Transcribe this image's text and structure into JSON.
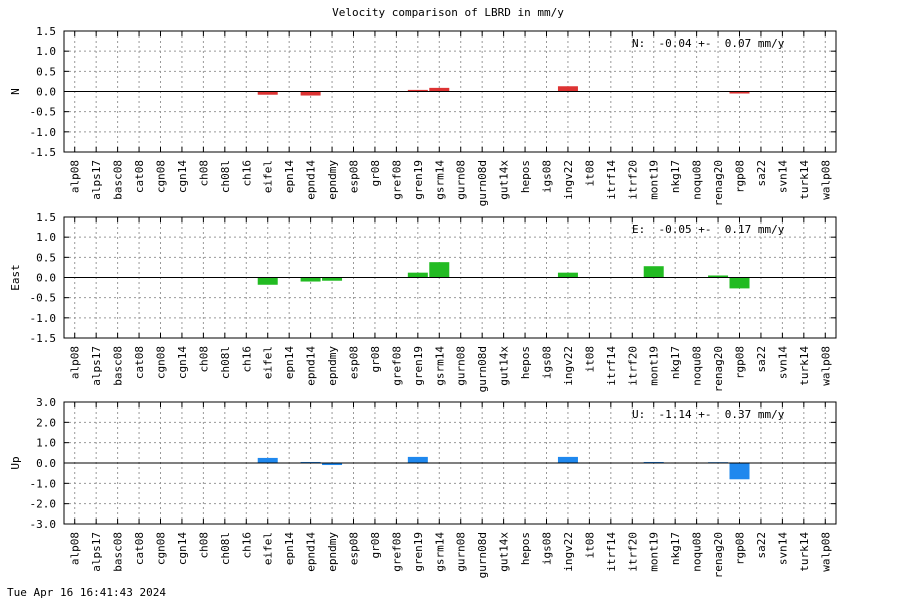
{
  "chart_data": {
    "type": "bar",
    "title": "Velocity comparison of LBRD in mm/y",
    "categories": [
      "alp08",
      "alps17",
      "basc08",
      "cat08",
      "cgn08",
      "cgn14",
      "ch08",
      "ch08l",
      "ch16",
      "eifel",
      "epn14",
      "epnd14",
      "epndmy",
      "esp08",
      "gr08",
      "gref08",
      "gren19",
      "gsrm14",
      "gurn08",
      "gurn08d",
      "gut14x",
      "hepos",
      "igs08",
      "ingv22",
      "it08",
      "itrf14",
      "itrf20",
      "mont19",
      "nkg17",
      "noqu08",
      "renag20",
      "rgp08",
      "sa22",
      "svn14",
      "turk14",
      "walp08"
    ],
    "grid": true,
    "panels": [
      {
        "ylabel": "N",
        "stat": "N:  -0.04 +-  0.07 mm/y",
        "color": "#dd3333",
        "ylim": [
          -1.5,
          1.5
        ],
        "yticks": [
          "1.5",
          "1.0",
          "0.5",
          "0.0",
          "-0.5",
          "-1.0",
          "-1.5"
        ],
        "values": [
          0,
          0,
          0,
          0,
          0,
          0,
          0,
          0,
          0,
          -0.08,
          0,
          -0.1,
          0,
          0,
          0,
          0,
          0.04,
          0.09,
          0,
          0,
          0,
          0,
          0,
          0.13,
          0,
          0,
          0,
          0,
          0,
          0,
          0,
          -0.05,
          0,
          0,
          0,
          0
        ]
      },
      {
        "ylabel": "East",
        "stat": "E:  -0.05 +-  0.17 mm/y",
        "color": "#22bb22",
        "ylim": [
          -1.5,
          1.5
        ],
        "yticks": [
          "1.5",
          "1.0",
          "0.5",
          "0.0",
          "-0.5",
          "-1.0",
          "-1.5"
        ],
        "values": [
          0,
          0,
          0,
          0,
          0,
          0,
          0,
          0,
          0,
          -0.18,
          0,
          -0.1,
          -0.08,
          0,
          0,
          0,
          0.12,
          0.38,
          0,
          0,
          0,
          0,
          0,
          0.12,
          0,
          0,
          0,
          0.28,
          0,
          0,
          0.05,
          -0.27,
          0,
          0,
          0,
          0
        ]
      },
      {
        "ylabel": "Up",
        "stat": "U:  -1.14 +-  0.37 mm/y",
        "color": "#1f88ee",
        "ylim": [
          -3.0,
          3.0
        ],
        "yticks": [
          "3.0",
          "2.0",
          "1.0",
          "0.0",
          "-1.0",
          "-2.0",
          "-3.0"
        ],
        "values": [
          0,
          0,
          0,
          0,
          0,
          0,
          0,
          0,
          0,
          0.25,
          0,
          0.05,
          -0.1,
          0,
          0,
          0,
          0.3,
          0,
          0,
          0,
          0,
          0,
          0,
          0.3,
          0,
          0,
          0,
          0.05,
          0,
          0,
          0.04,
          -0.8,
          0,
          0,
          0,
          0
        ]
      }
    ]
  },
  "footer": {
    "timestamp": "Tue Apr 16 16:41:43 2024"
  }
}
